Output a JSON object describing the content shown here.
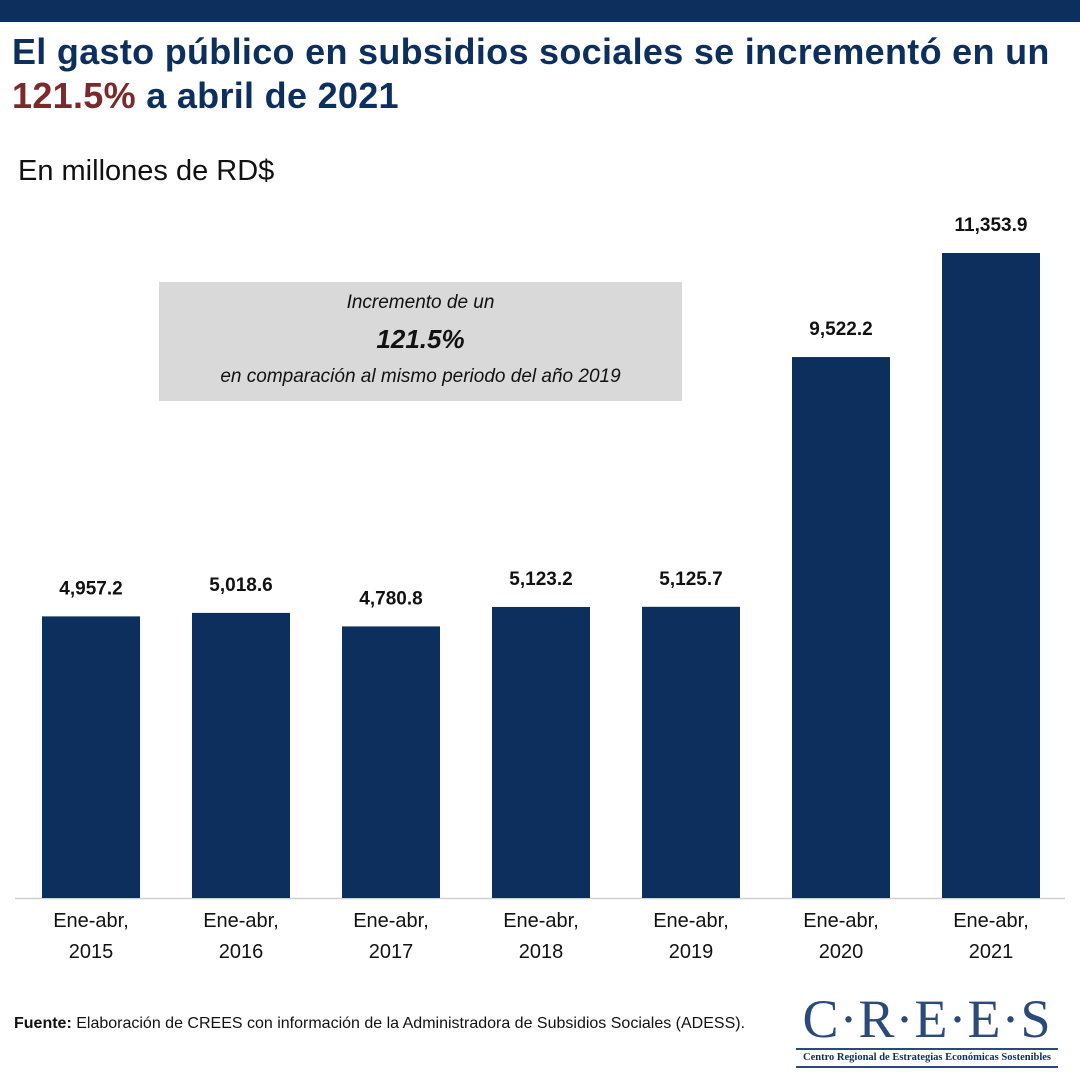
{
  "header": {
    "title_start": "El gasto público en subsidios sociales se incrementó en un ",
    "title_highlight": "121.5%",
    "title_end": " a abril de 2021"
  },
  "chart_data": {
    "type": "bar",
    "subtitle": "En millones de RD$",
    "categories": [
      "Ene-abr, 2015",
      "Ene-abr, 2016",
      "Ene-abr, 2017",
      "Ene-abr, 2018",
      "Ene-abr, 2019",
      "Ene-abr, 2020",
      "Ene-abr, 2021"
    ],
    "values": [
      4957.2,
      5018.6,
      4780.8,
      5123.2,
      5125.7,
      9522.2,
      11353.9
    ],
    "value_labels": [
      "4,957.2",
      "5,018.6",
      "4,780.8",
      "5,123.2",
      "5,125.7",
      "9,522.2",
      "11,353.9"
    ],
    "color": "#0d2f5e",
    "annotation": {
      "line1": "Incremento de un",
      "line2": "121.5%",
      "line3": "en comparación al mismo periodo del año 2019"
    }
  },
  "footer": {
    "source_label": "Fuente:",
    "source_text": " Elaboración de CREES con información de la Administradora de Subsidios Sociales (ADESS).",
    "logo": "C·R·E·E·S",
    "logo_caption": "Centro Regional de Estrategias Económicas Sostenibles"
  }
}
